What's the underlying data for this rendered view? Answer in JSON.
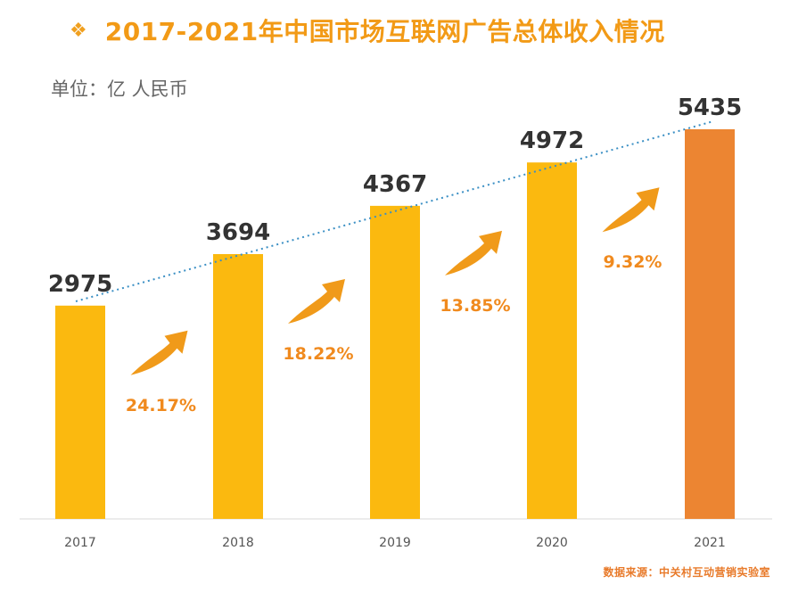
{
  "header": {
    "bullet": "❖",
    "title": "2017-2021年中国市场互联网广告总体收入情况"
  },
  "unit_label": "单位：亿 人民币",
  "source_note": "数据来源：中关村互动营销实验室",
  "colors": {
    "bar": "#fbb90f",
    "bar_highlight": "#ec8532",
    "trend_line": "#3a8fc4",
    "arrow": "#f09a1a",
    "growth_text": "#f08a1e",
    "title": "#f29a16"
  },
  "chart_data": {
    "type": "bar",
    "title": "2017-2021年中国市场互联网广告总体收入情况",
    "ylabel": "单位：亿 人民币",
    "xlabel": "",
    "categories": [
      "2017",
      "2018",
      "2019",
      "2020",
      "2021"
    ],
    "values": [
      2975,
      3694,
      4367,
      4972,
      5435
    ],
    "value_labels": [
      "2975",
      "3694",
      "4367",
      "4972",
      "5435"
    ],
    "growth_rates": [
      "24.17%",
      "18.22%",
      "13.85%",
      "9.32%"
    ],
    "highlight_category": "2021",
    "trend_line": "dotted",
    "grid": false,
    "legend": "none",
    "ylim": [
      0,
      5435
    ]
  }
}
